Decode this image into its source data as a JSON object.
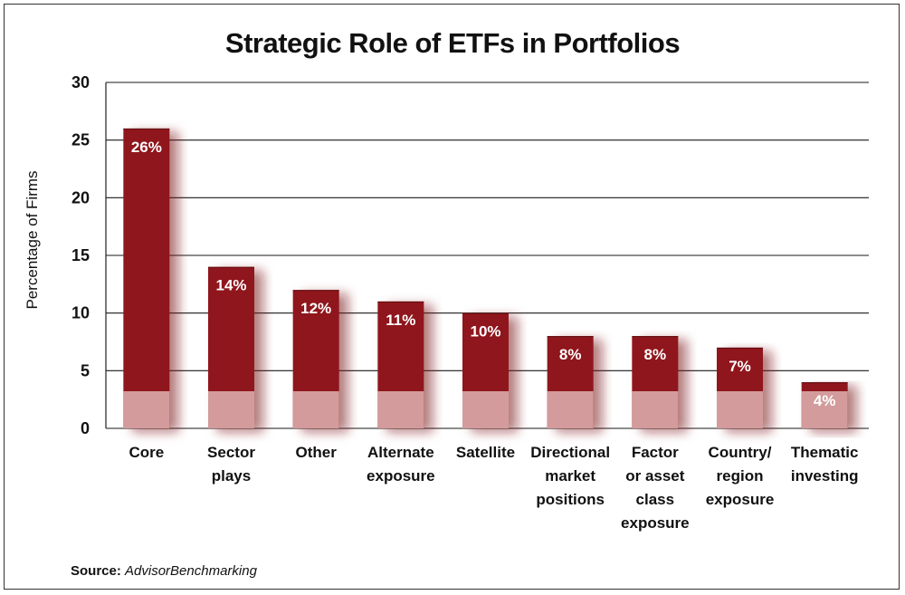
{
  "chart_data": {
    "type": "bar",
    "title": "Strategic Role of ETFs in Portfolios",
    "ylabel": "Percentage of Firms",
    "xlabel": "",
    "ylim": [
      0,
      30
    ],
    "yticks": [
      0,
      5,
      10,
      15,
      20,
      25,
      30
    ],
    "grid": true,
    "categories": [
      [
        "Core"
      ],
      [
        "Sector",
        "plays"
      ],
      [
        "Other"
      ],
      [
        "Alternate",
        "exposure"
      ],
      [
        "Satellite"
      ],
      [
        "Directional",
        "market",
        "positions"
      ],
      [
        "Factor",
        "or asset",
        "class",
        "exposure"
      ],
      [
        "Country/",
        "region",
        "exposure"
      ],
      [
        "Thematic",
        "investing"
      ]
    ],
    "values": [
      26,
      14,
      12,
      11,
      10,
      8,
      8,
      7,
      4
    ],
    "data_labels": [
      "26%",
      "14%",
      "12%",
      "11%",
      "10%",
      "8%",
      "8%",
      "7%",
      "4%"
    ],
    "colors": {
      "bar": "#8f151b",
      "bar_light": "#d39b9c",
      "shadow": "#7a1418"
    }
  },
  "source": {
    "label": "Source:",
    "value": "AdvisorBenchmarking"
  }
}
